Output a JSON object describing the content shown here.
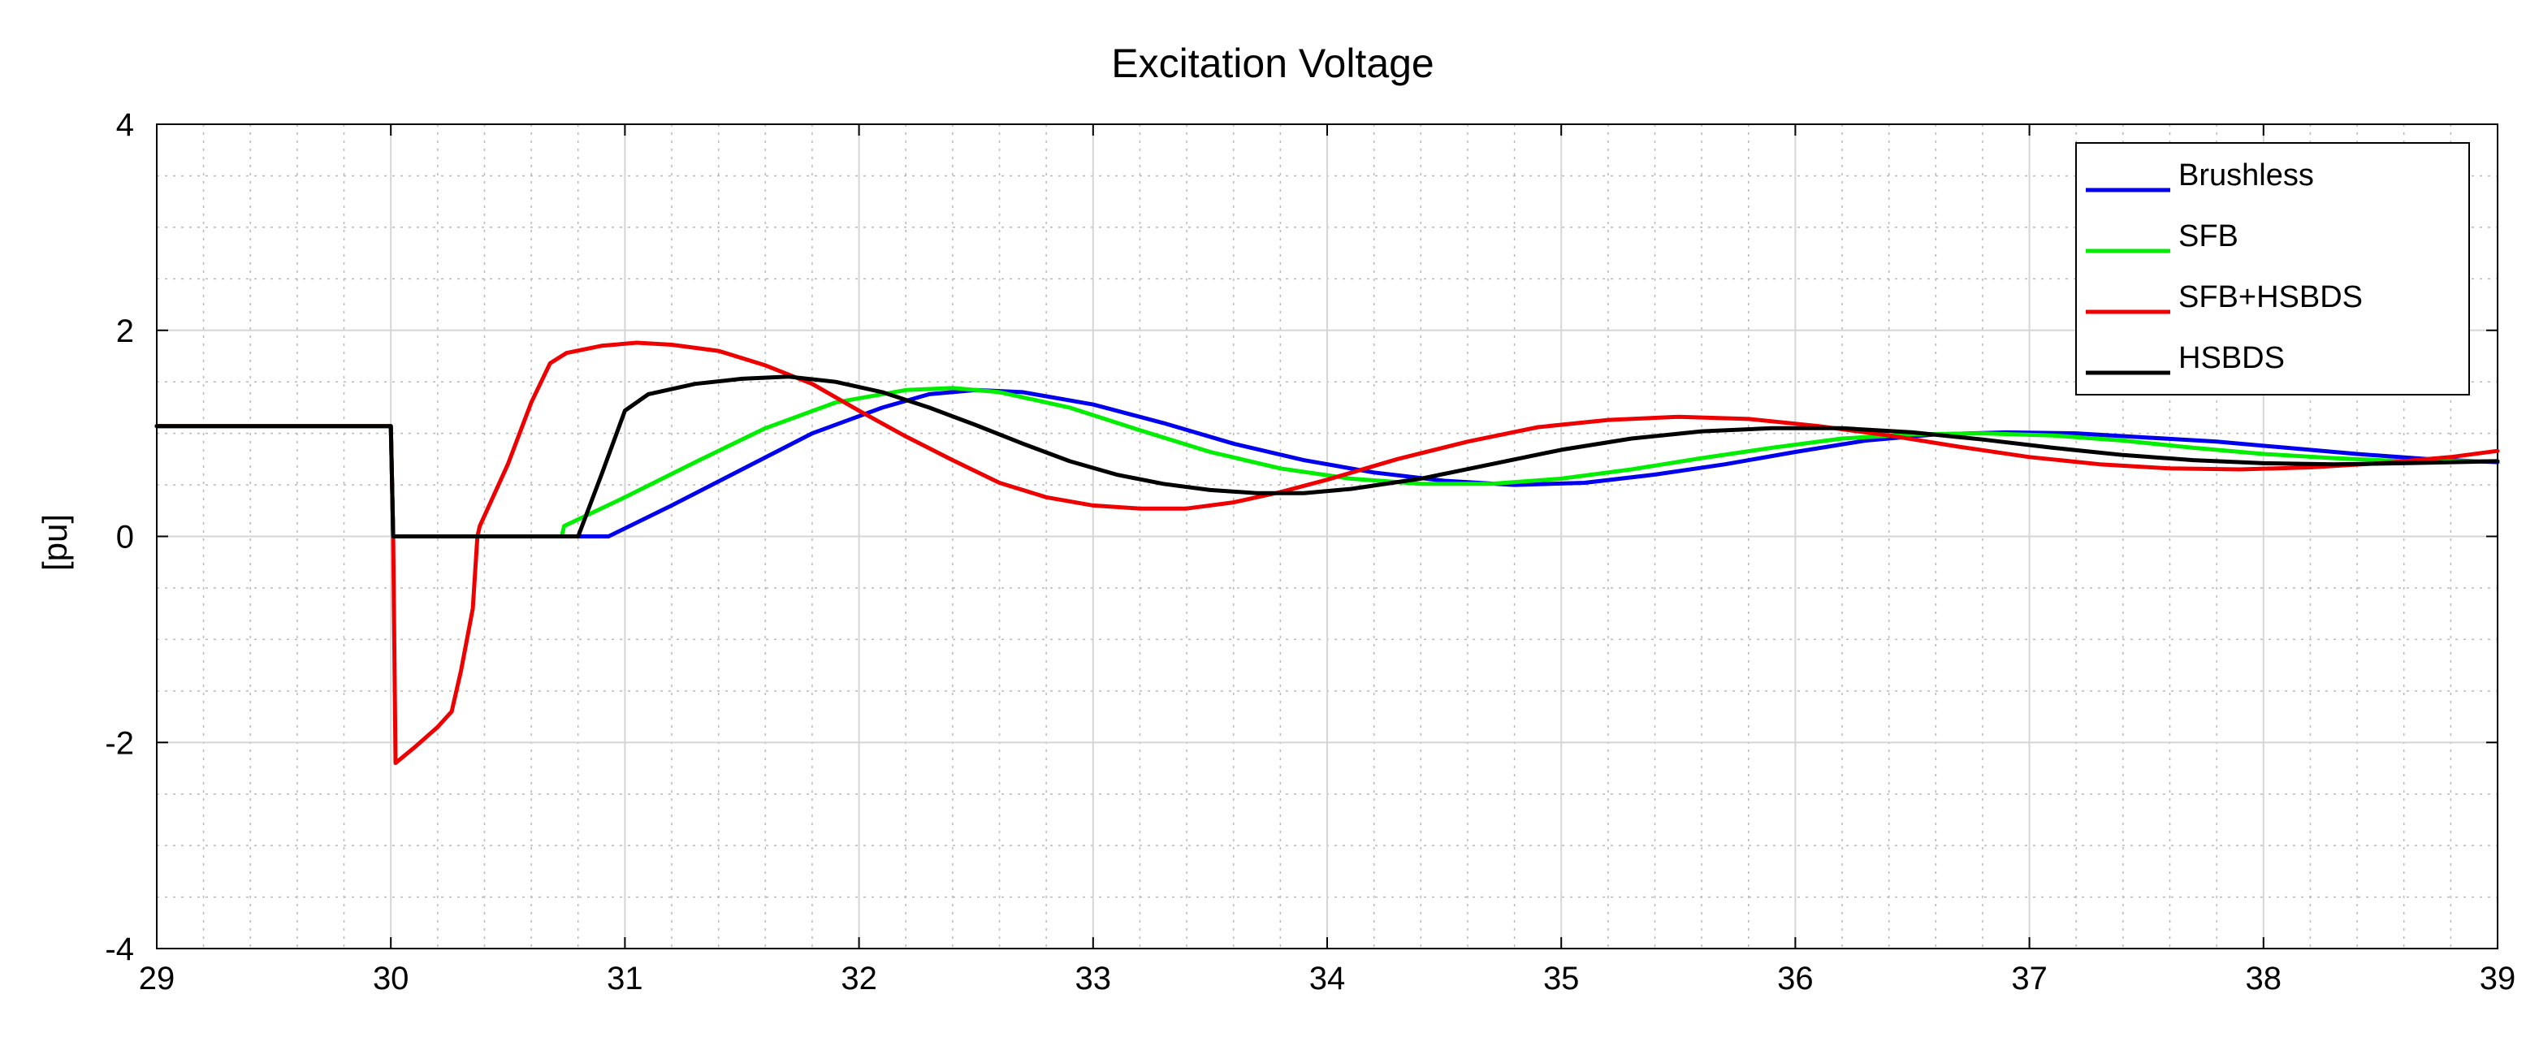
{
  "chart_data": {
    "type": "line",
    "title": "Excitation Voltage",
    "xlabel": "",
    "ylabel": "[pu]",
    "xlim": [
      29,
      39
    ],
    "ylim": [
      -4,
      4
    ],
    "xticks": [
      29,
      30,
      31,
      32,
      33,
      34,
      35,
      36,
      37,
      38,
      39
    ],
    "yticks": [
      -4,
      -2,
      0,
      2,
      4
    ],
    "grid": true,
    "minor_grid": true,
    "legend_position": "top-right",
    "series": [
      {
        "name": "Brushless",
        "color": "#0000ee",
        "points": [
          [
            29,
            1.07
          ],
          [
            30.0,
            1.07
          ],
          [
            30.01,
            0.0
          ],
          [
            30.93,
            0.0
          ],
          [
            31.2,
            0.3
          ],
          [
            31.5,
            0.65
          ],
          [
            31.8,
            1.0
          ],
          [
            32.1,
            1.25
          ],
          [
            32.3,
            1.38
          ],
          [
            32.5,
            1.42
          ],
          [
            32.7,
            1.4
          ],
          [
            33.0,
            1.28
          ],
          [
            33.3,
            1.1
          ],
          [
            33.6,
            0.9
          ],
          [
            33.9,
            0.74
          ],
          [
            34.2,
            0.62
          ],
          [
            34.5,
            0.54
          ],
          [
            34.8,
            0.5
          ],
          [
            35.1,
            0.52
          ],
          [
            35.4,
            0.6
          ],
          [
            35.7,
            0.7
          ],
          [
            36.0,
            0.82
          ],
          [
            36.3,
            0.93
          ],
          [
            36.6,
            0.99
          ],
          [
            36.9,
            1.01
          ],
          [
            37.2,
            1.0
          ],
          [
            37.5,
            0.96
          ],
          [
            37.8,
            0.92
          ],
          [
            38.1,
            0.86
          ],
          [
            38.4,
            0.8
          ],
          [
            38.7,
            0.75
          ],
          [
            39.0,
            0.72
          ]
        ]
      },
      {
        "name": "SFB",
        "color": "#00ee00",
        "points": [
          [
            29,
            1.07
          ],
          [
            30.0,
            1.07
          ],
          [
            30.01,
            0.0
          ],
          [
            30.5,
            0.0
          ],
          [
            30.73,
            0.0
          ],
          [
            30.74,
            0.1
          ],
          [
            31.0,
            0.38
          ],
          [
            31.3,
            0.72
          ],
          [
            31.6,
            1.05
          ],
          [
            31.9,
            1.3
          ],
          [
            32.2,
            1.42
          ],
          [
            32.4,
            1.44
          ],
          [
            32.6,
            1.4
          ],
          [
            32.9,
            1.25
          ],
          [
            33.2,
            1.03
          ],
          [
            33.5,
            0.82
          ],
          [
            33.8,
            0.66
          ],
          [
            34.1,
            0.56
          ],
          [
            34.4,
            0.51
          ],
          [
            34.7,
            0.51
          ],
          [
            35.0,
            0.56
          ],
          [
            35.3,
            0.65
          ],
          [
            35.6,
            0.76
          ],
          [
            35.9,
            0.86
          ],
          [
            36.2,
            0.95
          ],
          [
            36.5,
            0.99
          ],
          [
            36.8,
            1.0
          ],
          [
            37.1,
            0.98
          ],
          [
            37.4,
            0.93
          ],
          [
            37.7,
            0.86
          ],
          [
            38.0,
            0.8
          ],
          [
            38.3,
            0.76
          ],
          [
            38.6,
            0.73
          ],
          [
            39.0,
            0.73
          ]
        ]
      },
      {
        "name": "SFB+HSBDS",
        "color": "#ee0000",
        "points": [
          [
            29,
            1.07
          ],
          [
            30.0,
            1.07
          ],
          [
            30.01,
            0.0
          ],
          [
            30.02,
            -2.2
          ],
          [
            30.1,
            -2.05
          ],
          [
            30.2,
            -1.85
          ],
          [
            30.26,
            -1.7
          ],
          [
            30.3,
            -1.3
          ],
          [
            30.35,
            -0.7
          ],
          [
            30.37,
            0.0
          ],
          [
            30.38,
            0.1
          ],
          [
            30.5,
            0.7
          ],
          [
            30.6,
            1.3
          ],
          [
            30.68,
            1.68
          ],
          [
            30.75,
            1.78
          ],
          [
            30.9,
            1.85
          ],
          [
            31.05,
            1.88
          ],
          [
            31.2,
            1.86
          ],
          [
            31.4,
            1.8
          ],
          [
            31.6,
            1.66
          ],
          [
            31.8,
            1.48
          ],
          [
            32.0,
            1.22
          ],
          [
            32.2,
            0.97
          ],
          [
            32.4,
            0.74
          ],
          [
            32.6,
            0.52
          ],
          [
            32.8,
            0.38
          ],
          [
            33.0,
            0.3
          ],
          [
            33.2,
            0.27
          ],
          [
            33.4,
            0.27
          ],
          [
            33.6,
            0.33
          ],
          [
            33.8,
            0.43
          ],
          [
            34.0,
            0.55
          ],
          [
            34.3,
            0.75
          ],
          [
            34.6,
            0.92
          ],
          [
            34.9,
            1.06
          ],
          [
            35.2,
            1.13
          ],
          [
            35.5,
            1.16
          ],
          [
            35.8,
            1.14
          ],
          [
            36.1,
            1.07
          ],
          [
            36.4,
            0.98
          ],
          [
            36.7,
            0.87
          ],
          [
            37.0,
            0.77
          ],
          [
            37.3,
            0.7
          ],
          [
            37.6,
            0.66
          ],
          [
            37.9,
            0.65
          ],
          [
            38.2,
            0.67
          ],
          [
            38.5,
            0.71
          ],
          [
            38.8,
            0.77
          ],
          [
            39.0,
            0.83
          ]
        ]
      },
      {
        "name": "HSBDS",
        "color": "#000000",
        "points": [
          [
            29,
            1.07
          ],
          [
            30.0,
            1.07
          ],
          [
            30.01,
            0.0
          ],
          [
            30.8,
            0.0
          ],
          [
            30.9,
            0.6
          ],
          [
            31.0,
            1.22
          ],
          [
            31.1,
            1.38
          ],
          [
            31.3,
            1.48
          ],
          [
            31.5,
            1.53
          ],
          [
            31.7,
            1.55
          ],
          [
            31.9,
            1.5
          ],
          [
            32.1,
            1.4
          ],
          [
            32.3,
            1.25
          ],
          [
            32.5,
            1.08
          ],
          [
            32.7,
            0.9
          ],
          [
            32.9,
            0.73
          ],
          [
            33.1,
            0.6
          ],
          [
            33.3,
            0.51
          ],
          [
            33.5,
            0.45
          ],
          [
            33.7,
            0.42
          ],
          [
            33.9,
            0.42
          ],
          [
            34.1,
            0.46
          ],
          [
            34.4,
            0.56
          ],
          [
            34.7,
            0.7
          ],
          [
            35.0,
            0.84
          ],
          [
            35.3,
            0.95
          ],
          [
            35.6,
            1.02
          ],
          [
            35.9,
            1.05
          ],
          [
            36.2,
            1.05
          ],
          [
            36.5,
            1.01
          ],
          [
            36.8,
            0.94
          ],
          [
            37.1,
            0.86
          ],
          [
            37.4,
            0.79
          ],
          [
            37.7,
            0.74
          ],
          [
            38.0,
            0.71
          ],
          [
            38.3,
            0.7
          ],
          [
            38.6,
            0.71
          ],
          [
            39.0,
            0.73
          ]
        ]
      }
    ]
  }
}
